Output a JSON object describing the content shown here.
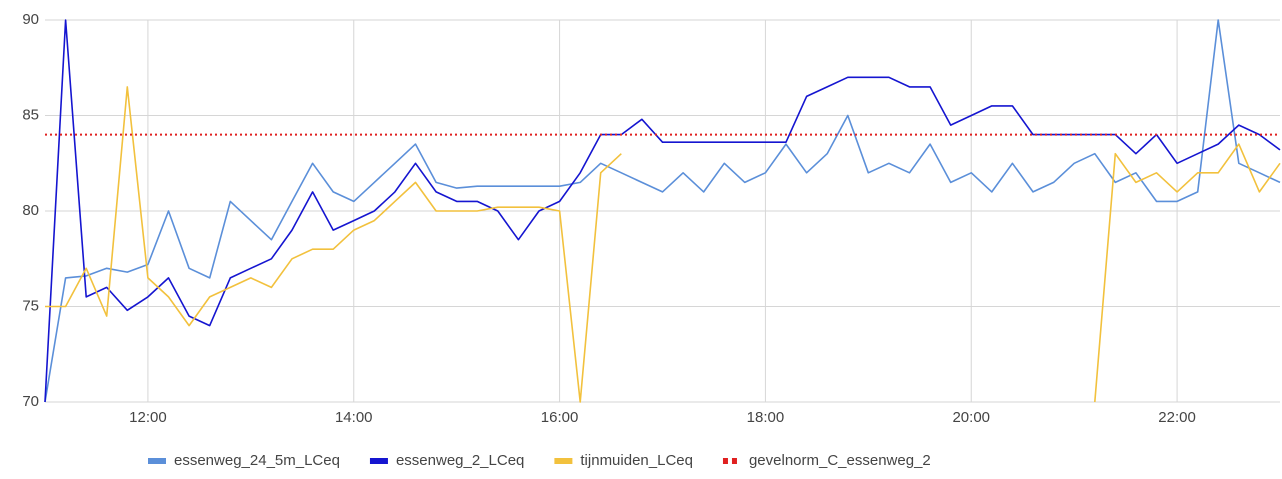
{
  "chart_data": {
    "type": "line",
    "x": [
      11.0,
      11.2,
      11.4,
      11.6,
      11.8,
      12.0,
      12.2,
      12.4,
      12.6,
      12.8,
      13.0,
      13.2,
      13.4,
      13.6,
      13.8,
      14.0,
      14.2,
      14.4,
      14.6,
      14.8,
      15.0,
      15.2,
      15.4,
      15.6,
      15.8,
      16.0,
      16.2,
      16.4,
      16.6,
      16.8,
      17.0,
      17.2,
      17.4,
      17.6,
      17.8,
      18.0,
      18.2,
      18.4,
      18.6,
      18.8,
      19.0,
      19.2,
      19.4,
      19.6,
      19.8,
      20.0,
      20.2,
      20.4,
      20.6,
      20.8,
      21.0,
      21.2,
      21.4,
      21.6,
      21.8,
      22.0,
      22.2,
      22.4,
      22.6,
      22.8,
      23.0
    ],
    "series": [
      {
        "name": "essenweg_24_5m_LCeq",
        "color": "#5b8fd9",
        "values": [
          70,
          76.5,
          76.6,
          77,
          76.8,
          77.2,
          80,
          77,
          76.5,
          80.5,
          79.5,
          78.5,
          80.5,
          82.5,
          81,
          80.5,
          81.5,
          82.5,
          83.5,
          81.5,
          81.2,
          81.3,
          81.3,
          81.3,
          81.3,
          81.3,
          81.5,
          82.5,
          82,
          81.5,
          81,
          82,
          81,
          82.5,
          81.5,
          82,
          83.5,
          82,
          83,
          85,
          82,
          82.5,
          82,
          83.5,
          81.5,
          82,
          81,
          82.5,
          81,
          81.5,
          82.5,
          83,
          81.5,
          82,
          80.5,
          80.5,
          81,
          90,
          82.5,
          82,
          81.5
        ]
      },
      {
        "name": "essenweg_2_LCeq",
        "color": "#1515d0",
        "values": [
          70,
          90,
          75.5,
          76,
          74.8,
          75.5,
          76.5,
          74.5,
          74,
          76.5,
          77,
          77.5,
          79,
          81,
          79,
          79.5,
          80,
          81,
          82.5,
          81,
          80.5,
          80.5,
          80,
          78.5,
          80,
          80.5,
          82,
          84,
          84,
          84.8,
          83.6,
          83.6,
          83.6,
          83.6,
          83.6,
          83.6,
          83.6,
          86,
          86.5,
          87,
          87,
          87,
          86.5,
          86.5,
          84.5,
          85,
          85.5,
          85.5,
          84,
          84,
          84,
          84,
          84,
          83,
          84,
          82.5,
          83,
          83.5,
          84.5,
          84,
          83.2
        ]
      },
      {
        "name": "tijnmuiden_LCeq",
        "color": "#f2c13d",
        "values": [
          75,
          75,
          77,
          74.5,
          86.5,
          76.5,
          75.5,
          74,
          75.5,
          76,
          76.5,
          76,
          77.5,
          78,
          78,
          79,
          79.5,
          80.5,
          81.5,
          80,
          80,
          80,
          80.2,
          80.2,
          80.2,
          80,
          70,
          82,
          83,
          null,
          null,
          null,
          null,
          null,
          null,
          null,
          null,
          null,
          null,
          null,
          null,
          null,
          null,
          null,
          null,
          null,
          null,
          null,
          null,
          null,
          null,
          70,
          83,
          81.5,
          82,
          81,
          82,
          82,
          83.5,
          81,
          82.5
        ]
      },
      {
        "name": "gevelnorm_C_essenweg_2",
        "color": "#e02020",
        "dotted": true,
        "x": [
          11,
          23
        ],
        "values": [
          84,
          84
        ]
      }
    ],
    "xlim": [
      11,
      23
    ],
    "xticks": [
      {
        "value": 12,
        "label": "12:00"
      },
      {
        "value": 14,
        "label": "14:00"
      },
      {
        "value": 16,
        "label": "16:00"
      },
      {
        "value": 18,
        "label": "18:00"
      },
      {
        "value": 20,
        "label": "20:00"
      },
      {
        "value": 22,
        "label": "22:00"
      }
    ],
    "ylim": [
      70,
      90
    ],
    "yticks": [
      70,
      75,
      80,
      85,
      90
    ],
    "grid": true,
    "legend": "bottom"
  }
}
